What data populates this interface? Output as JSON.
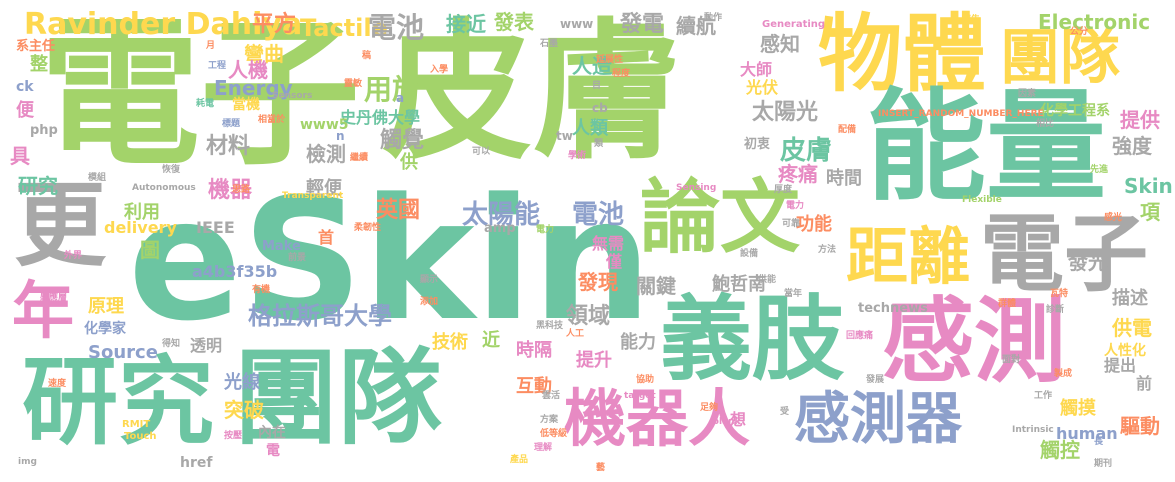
{
  "words": [
    {
      "text": "電子",
      "color": "#a3d36a"
    },
    {
      "text": "皮膚",
      "color": "#a3d36a"
    },
    {
      "text": "eSkin",
      "color": "#6cc5a2"
    },
    {
      "text": "物體",
      "color": "#fed84f"
    },
    {
      "text": "團隊",
      "color": "#fed84f"
    },
    {
      "text": "能量",
      "color": "#6cc5a2"
    },
    {
      "text": "論文",
      "color": "#a3d36a"
    },
    {
      "text": "更",
      "color": "#a8a8a8"
    },
    {
      "text": "電子",
      "color": "#a8a8a8"
    },
    {
      "text": "距離",
      "color": "#fed84f"
    },
    {
      "text": "義肢",
      "color": "#6cc5a2"
    },
    {
      "text": "感測",
      "color": "#e78ac3"
    },
    {
      "text": "研究",
      "color": "#6cc5a2"
    },
    {
      "text": "團隊",
      "color": "#6cc5a2"
    },
    {
      "text": "機器人",
      "color": "#e78ac3"
    },
    {
      "text": "感測器",
      "color": "#8da0cb"
    },
    {
      "text": "年",
      "color": "#e78ac3"
    },
    {
      "text": "Ravinder Dahiya",
      "color": "#fed84f"
    },
    {
      "text": "平方",
      "color": "#fc8d62"
    },
    {
      "text": "Tactile",
      "color": "#fed84f"
    },
    {
      "text": "電池",
      "color": "#a8a8a8"
    },
    {
      "text": "用於",
      "color": "#a3d36a"
    },
    {
      "text": "接近",
      "color": "#6cc5a2"
    },
    {
      "text": "發表",
      "color": "#a3d36a"
    },
    {
      "text": "人造",
      "color": "#6cc5a2"
    },
    {
      "text": "發電",
      "color": "#a8a8a8"
    },
    {
      "text": "續航",
      "color": "#a8a8a8"
    },
    {
      "text": "Electronic",
      "color": "#a3d36a"
    },
    {
      "text": "彎曲",
      "color": "#fed84f"
    },
    {
      "text": "感知",
      "color": "#a8a8a8"
    },
    {
      "text": "人機",
      "color": "#e78ac3"
    },
    {
      "text": "Energy",
      "color": "#8da0cb"
    },
    {
      "text": "大師",
      "color": "#e78ac3"
    },
    {
      "text": "光伏",
      "color": "#fed84f"
    },
    {
      "text": "太陽光",
      "color": "#a8a8a8"
    },
    {
      "text": "化學工程系",
      "color": "#a3d36a"
    },
    {
      "text": "提供",
      "color": "#e78ac3"
    },
    {
      "text": "史丹佛大學",
      "color": "#6cc5a2"
    },
    {
      "text": "觸覺",
      "color": "#a8a8a8"
    },
    {
      "text": "材料",
      "color": "#a8a8a8"
    },
    {
      "text": "人類",
      "color": "#6cc5a2"
    },
    {
      "text": "皮膚",
      "color": "#6cc5a2"
    },
    {
      "text": "強度",
      "color": "#a8a8a8"
    },
    {
      "text": "研究",
      "color": "#6cc5a2"
    },
    {
      "text": "檢測",
      "color": "#a8a8a8"
    },
    {
      "text": "疼痛",
      "color": "#e78ac3"
    },
    {
      "text": "時間",
      "color": "#a8a8a8"
    },
    {
      "text": "Skin",
      "color": "#6cc5a2"
    },
    {
      "text": "機器",
      "color": "#e78ac3"
    },
    {
      "text": "輕便",
      "color": "#a8a8a8"
    },
    {
      "text": "英國",
      "color": "#fc8d62"
    },
    {
      "text": "太陽能",
      "color": "#8da0cb"
    },
    {
      "text": "電池",
      "color": "#8da0cb"
    },
    {
      "text": "項",
      "color": "#a3d36a"
    },
    {
      "text": "功能",
      "color": "#fc8d62"
    },
    {
      "text": "利用",
      "color": "#a3d36a"
    },
    {
      "text": "delivery",
      "color": "#fed84f"
    },
    {
      "text": "IEEE",
      "color": "#a8a8a8"
    },
    {
      "text": "首",
      "color": "#fc8d62"
    },
    {
      "text": "無需",
      "color": "#e78ac3"
    },
    {
      "text": "僅",
      "color": "#e78ac3"
    },
    {
      "text": "發光",
      "color": "#a8a8a8"
    },
    {
      "text": "圖",
      "color": "#a3d36a"
    },
    {
      "text": "a4b3f35b",
      "color": "#8da0cb"
    },
    {
      "text": "發現",
      "color": "#fc8d62"
    },
    {
      "text": "關鍵",
      "color": "#a8a8a8"
    },
    {
      "text": "鮑哲南",
      "color": "#a8a8a8"
    },
    {
      "text": "描述",
      "color": "#a8a8a8"
    },
    {
      "text": "原理",
      "color": "#fed84f"
    },
    {
      "text": "格拉斯哥大學",
      "color": "#8da0cb"
    },
    {
      "text": "領域",
      "color": "#a8a8a8"
    },
    {
      "text": "供電",
      "color": "#fed84f"
    },
    {
      "text": "Source",
      "color": "#8da0cb"
    },
    {
      "text": "化學家",
      "color": "#8da0cb"
    },
    {
      "text": "透明",
      "color": "#a8a8a8"
    },
    {
      "text": "技術",
      "color": "#fed84f"
    },
    {
      "text": "近",
      "color": "#a3d36a"
    },
    {
      "text": "能力",
      "color": "#a8a8a8"
    },
    {
      "text": "時隔",
      "color": "#e78ac3"
    },
    {
      "text": "人性化",
      "color": "#fed84f"
    },
    {
      "text": "提出",
      "color": "#a8a8a8"
    },
    {
      "text": "提升",
      "color": "#e78ac3"
    },
    {
      "text": "光線",
      "color": "#8da0cb"
    },
    {
      "text": "互動",
      "color": "#fc8d62"
    },
    {
      "text": "前",
      "color": "#a8a8a8"
    },
    {
      "text": "突破",
      "color": "#fed84f"
    },
    {
      "text": "觸摸",
      "color": "#fed84f"
    },
    {
      "text": "內在",
      "color": "#a8a8a8"
    },
    {
      "text": "想",
      "color": "#e78ac3"
    },
    {
      "text": "驅動",
      "color": "#fc8d62"
    },
    {
      "text": "電",
      "color": "#e78ac3"
    },
    {
      "text": "human",
      "color": "#8da0cb"
    },
    {
      "text": "觸控",
      "color": "#a3d36a"
    },
    {
      "text": "href",
      "color": "#a8a8a8"
    },
    {
      "text": "具",
      "color": "#e78ac3"
    },
    {
      "text": "整",
      "color": "#a3d36a"
    },
    {
      "text": "便",
      "color": "#e78ac3"
    },
    {
      "text": "ck",
      "color": "#8da0cb"
    },
    {
      "text": "php",
      "color": "#a8a8a8"
    },
    {
      "text": "系主任",
      "color": "#fc8d62"
    },
    {
      "text": "當機",
      "color": "#fed84f"
    },
    {
      "text": "www5",
      "color": "#a3d36a"
    },
    {
      "text": "Make",
      "color": "#8da0cb"
    },
    {
      "text": "amp",
      "color": "#a8a8a8"
    },
    {
      "text": "technews",
      "color": "#a8a8a8"
    },
    {
      "text": "tw",
      "color": "#a8a8a8"
    },
    {
      "text": "cb",
      "color": "#a8a8a8"
    },
    {
      "text": "www",
      "color": "#a8a8a8"
    },
    {
      "text": "初衷",
      "color": "#a8a8a8"
    },
    {
      "text": "供",
      "color": "#a3d36a"
    },
    {
      "text": "n",
      "color": "#8da0cb"
    },
    {
      "text": "a",
      "color": "#8da0cb"
    },
    {
      "text": "Generating",
      "color": "#e78ac3"
    },
    {
      "text": "Sensors",
      "color": "#a8a8a8"
    },
    {
      "text": "Autonomous",
      "color": "#a8a8a8"
    },
    {
      "text": "Transparent",
      "color": "#fed84f"
    },
    {
      "text": "Sensing",
      "color": "#e78ac3"
    },
    {
      "text": "INSERT_RANDOM_NUMBER_HERE",
      "color": "#fc8d62"
    },
    {
      "text": "Flexible",
      "color": "#a3d36a"
    },
    {
      "text": "RMIT",
      "color": "#fed84f"
    },
    {
      "text": "Touch",
      "color": "#fed84f"
    },
    {
      "text": "target",
      "color": "#e78ac3"
    },
    {
      "text": "_blank",
      "color": "#e78ac3"
    },
    {
      "text": "Intrinsic",
      "color": "#a8a8a8"
    },
    {
      "text": "img",
      "color": "#a8a8a8"
    },
    {
      "text": "月",
      "color": "#fc8d62"
    },
    {
      "text": "工程",
      "color": "#8da0cb"
    },
    {
      "text": "稿",
      "color": "#fc8d62"
    },
    {
      "text": "延展性",
      "color": "#fc8d62"
    },
    {
      "text": "石墨",
      "color": "#a8a8a8"
    },
    {
      "text": "動作",
      "color": "#a8a8a8"
    },
    {
      "text": "廣告",
      "color": "#fed84f"
    },
    {
      "text": "公分",
      "color": "#fc8d62"
    },
    {
      "text": "標題",
      "color": "#8da0cb"
    },
    {
      "text": "相當於",
      "color": "#fc8d62"
    },
    {
      "text": "耗電",
      "color": "#6cc5a2"
    },
    {
      "text": "因素",
      "color": "#a8a8a8"
    },
    {
      "text": "相比",
      "color": "#a8a8a8"
    },
    {
      "text": "配備",
      "color": "#fc8d62"
    },
    {
      "text": "先進",
      "color": "#a3d36a"
    },
    {
      "text": "恢復",
      "color": "#a8a8a8"
    },
    {
      "text": "思路",
      "color": "#fc8d62"
    },
    {
      "text": "模組",
      "color": "#a8a8a8"
    },
    {
      "text": "柔韌性",
      "color": "#fc8d62"
    },
    {
      "text": "靈敏",
      "color": "#fc8d62"
    },
    {
      "text": "電力",
      "color": "#a3d36a"
    },
    {
      "text": "設備",
      "color": "#a8a8a8"
    },
    {
      "text": "方法",
      "color": "#a8a8a8"
    },
    {
      "text": "可靠",
      "color": "#a8a8a8"
    },
    {
      "text": "感光",
      "color": "#fc8d62"
    },
    {
      "text": "外界",
      "color": "#e78ac3"
    },
    {
      "text": "前景",
      "color": "#a8a8a8"
    },
    {
      "text": "顯示",
      "color": "#a8a8a8"
    },
    {
      "text": "供能",
      "color": "#a8a8a8"
    },
    {
      "text": "當年",
      "color": "#a8a8a8"
    },
    {
      "text": "群體",
      "color": "#fc8d62"
    },
    {
      "text": "瓦特",
      "color": "#fc8d62"
    },
    {
      "text": "診斷",
      "color": "#a8a8a8"
    },
    {
      "text": "感應層",
      "color": "#e78ac3"
    },
    {
      "text": "有機",
      "color": "#fc8d62"
    },
    {
      "text": "添加",
      "color": "#fc8d62"
    },
    {
      "text": "黑科技",
      "color": "#a8a8a8"
    },
    {
      "text": "人工",
      "color": "#fc8d62"
    },
    {
      "text": "回應痛",
      "color": "#e78ac3"
    },
    {
      "text": "面對",
      "color": "#a8a8a8"
    },
    {
      "text": "速度",
      "color": "#fc8d62"
    },
    {
      "text": "雲活",
      "color": "#a8a8a8"
    },
    {
      "text": "協助",
      "color": "#fc8d62"
    },
    {
      "text": "方案",
      "color": "#a8a8a8"
    },
    {
      "text": "足夠",
      "color": "#fc8d62"
    },
    {
      "text": "發展",
      "color": "#a8a8a8"
    },
    {
      "text": "工作",
      "color": "#a8a8a8"
    },
    {
      "text": "按壓",
      "color": "#e78ac3"
    },
    {
      "text": "低等級",
      "color": "#fc8d62"
    },
    {
      "text": "理解",
      "color": "#e78ac3"
    },
    {
      "text": "產品",
      "color": "#fed84f"
    },
    {
      "text": "期刊",
      "color": "#a8a8a8"
    },
    {
      "text": "製成",
      "color": "#fc8d62"
    },
    {
      "text": "長",
      "color": "#8da0cb"
    },
    {
      "text": "學術",
      "color": "#e78ac3"
    },
    {
      "text": "得知",
      "color": "#a8a8a8"
    },
    {
      "text": "可以",
      "color": "#a8a8a8"
    },
    {
      "text": "入學",
      "color": "#fc8d62"
    },
    {
      "text": "目",
      "color": "#a8a8a8"
    },
    {
      "text": "程度",
      "color": "#fc8d62"
    },
    {
      "text": "類",
      "color": "#a8a8a8"
    },
    {
      "text": "繼續",
      "color": "#fc8d62"
    },
    {
      "text": "受",
      "color": "#a8a8a8"
    },
    {
      "text": "厚度",
      "color": "#a8a8a8"
    },
    {
      "text": "電力",
      "color": "#e78ac3"
    },
    {
      "text": "藝",
      "color": "#fc8d62"
    }
  ]
}
